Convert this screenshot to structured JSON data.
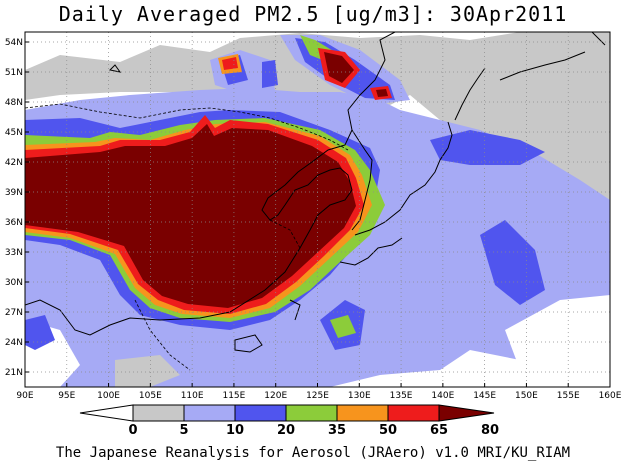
{
  "title": "Daily Averaged PM2.5 [ug/m3]: 30Apr2011",
  "footer": "The Japanese Reanalysis for Aerosol (JRAero) v1.0 MRI/KU_RIAM",
  "map": {
    "lon_range": [
      90,
      160
    ],
    "lat_range": [
      19.5,
      55
    ],
    "lon_ticks": [
      "90E",
      "95E",
      "100E",
      "105E",
      "110E",
      "115E",
      "120E",
      "125E",
      "130E",
      "135E",
      "140E",
      "145E",
      "150E",
      "155E",
      "160E"
    ],
    "lat_ticks": [
      "21N",
      "24N",
      "27N",
      "30N",
      "33N",
      "36N",
      "39N",
      "42N",
      "45N",
      "48N",
      "51N",
      "54N"
    ],
    "grid": true
  },
  "colorbar": {
    "labels": [
      "0",
      "5",
      "10",
      "20",
      "35",
      "50",
      "65",
      "80"
    ],
    "colors": [
      "#ffffff",
      "#c8c8c8",
      "#a6aaf5",
      "#5055ee",
      "#8ccc3a",
      "#f7941d",
      "#ee1c1c",
      "#7a0000"
    ]
  }
}
